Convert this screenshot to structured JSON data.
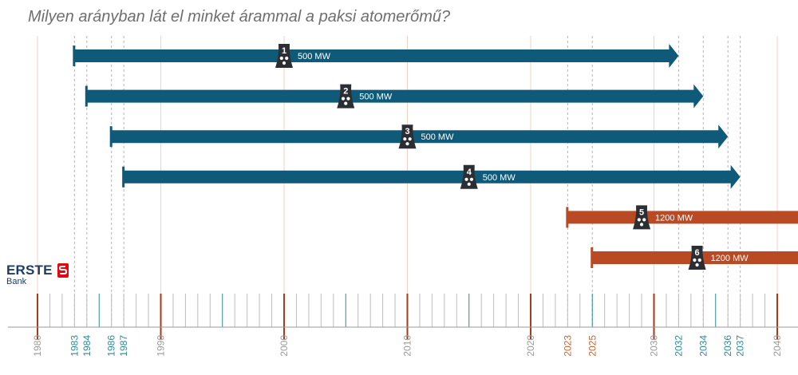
{
  "title": "Milyen arányban lát el minket árammal a paksi atomerőmű?",
  "logo": {
    "word": "ERSTE",
    "sub": "Bank"
  },
  "colors": {
    "blue": "#0f5a78",
    "orange": "#b94a23",
    "grid_major": "#f2d2c2",
    "dashed": "#b3b3b3",
    "tick_major": "#a33d1c",
    "tick_teal": "#2d8a94",
    "tick_minor": "#bdbdbd",
    "axis": "#999999",
    "label_decade": "#9a9a9a",
    "label_teal": "#2d8a94",
    "label_orange": "#c8652e",
    "icon": "#2b2f33"
  },
  "chart_data": {
    "type": "timeline",
    "title": "Milyen arányban lát el minket árammal a paksi atomerőmű?",
    "xlim": [
      1980,
      2040
    ],
    "decade_labels": [
      "1980",
      "1990",
      "2000",
      "2010",
      "2020",
      "2030",
      "2040"
    ],
    "teal_labels": [
      "1983",
      "1984",
      "1986",
      "1987",
      "2032",
      "2034",
      "2036",
      "2037"
    ],
    "orange_labels": [
      "2023",
      "2025"
    ],
    "units": [
      {
        "unit": "1",
        "start": 1983,
        "end": 2032,
        "capacity": "500 MW",
        "icon_x": 2000,
        "color": "blue",
        "open_end": false
      },
      {
        "unit": "2",
        "start": 1984,
        "end": 2034,
        "capacity": "500 MW",
        "icon_x": 2005,
        "color": "blue",
        "open_end": false
      },
      {
        "unit": "3",
        "start": 1986,
        "end": 2036,
        "capacity": "500 MW",
        "icon_x": 2010,
        "color": "blue",
        "open_end": false
      },
      {
        "unit": "4",
        "start": 1987,
        "end": 2037,
        "capacity": "500 MW",
        "icon_x": 2015,
        "color": "blue",
        "open_end": false
      },
      {
        "unit": "5",
        "start": 2023,
        "end": 2040,
        "capacity": "1200 MW",
        "icon_x": 2029,
        "color": "orange",
        "open_end": true
      },
      {
        "unit": "6",
        "start": 2025,
        "end": 2040,
        "capacity": "1200 MW",
        "icon_x": 2033.5,
        "color": "orange",
        "open_end": true
      }
    ]
  }
}
